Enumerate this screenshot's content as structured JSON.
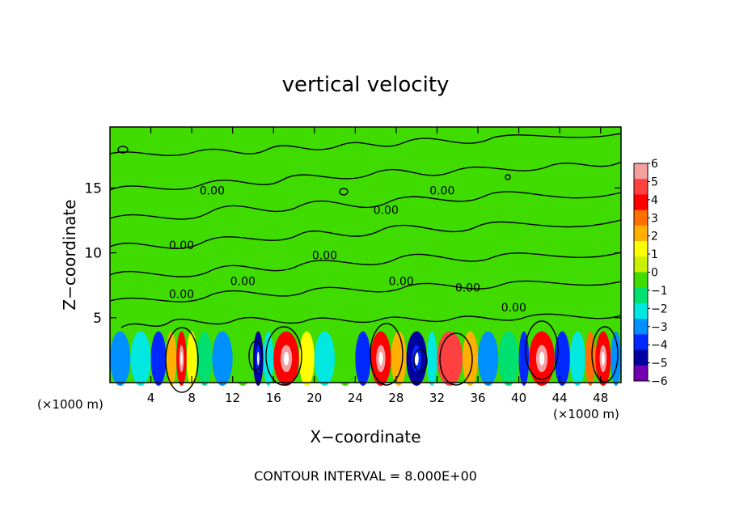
{
  "chart_data": {
    "type": "heatmap",
    "title": "vertical velocity",
    "xlabel": "X−coordinate",
    "ylabel": "Z−coordinate",
    "x_unit_left": "(×1000 m)",
    "x_unit_right": "(×1000 m)",
    "x_ticks": [
      "4",
      "8",
      "12",
      "16",
      "20",
      "24",
      "28",
      "32",
      "36",
      "40",
      "44",
      "48"
    ],
    "x_tick_values": [
      4,
      8,
      12,
      16,
      20,
      24,
      28,
      32,
      36,
      40,
      44,
      48
    ],
    "y_ticks": [
      "5",
      "10",
      "15"
    ],
    "y_tick_values": [
      5,
      10,
      15
    ],
    "xlim": [
      0,
      50
    ],
    "ylim": [
      0,
      19.7
    ],
    "colorbar": {
      "labels": [
        "6",
        "5",
        "4",
        "3",
        "2",
        "1",
        "0",
        "−1",
        "−2",
        "−3",
        "−4",
        "−5",
        "−6"
      ],
      "values": [
        6,
        5,
        4,
        3,
        2,
        1,
        0,
        -1,
        -2,
        -3,
        -4,
        -5,
        -6
      ],
      "colors": [
        "#f4a0a0",
        "#ff4040",
        "#ff0000",
        "#ff7000",
        "#ffb000",
        "#ffff00",
        "#c8f000",
        "#40dc00",
        "#00e070",
        "#00e8e0",
        "#0090ff",
        "#0028ff",
        "#0000a0",
        "#7000b0"
      ]
    },
    "cells": [
      {
        "x0": 0,
        "x1": 2,
        "color": "#0090ff"
      },
      {
        "x0": 2,
        "x1": 4,
        "color": "#00e8e0"
      },
      {
        "x0": 4,
        "x1": 5.5,
        "color": "#0028ff"
      },
      {
        "x0": 5.5,
        "x1": 6.5,
        "color": "#ffb000"
      },
      {
        "x0": 6.5,
        "x1": 7.5,
        "color": "#ff0000"
      },
      {
        "x0": 7.5,
        "x1": 8.5,
        "color": "#ffff00"
      },
      {
        "x0": 8.5,
        "x1": 10,
        "color": "#00e070"
      },
      {
        "x0": 10,
        "x1": 12,
        "color": "#0090ff"
      },
      {
        "x0": 12,
        "x1": 14,
        "color": "#40dc00"
      },
      {
        "x0": 14,
        "x1": 15,
        "color": "#0000a0"
      },
      {
        "x0": 15,
        "x1": 16,
        "color": "#00e8e0"
      },
      {
        "x0": 16,
        "x1": 18.5,
        "color": "#ff0000"
      },
      {
        "x0": 18.5,
        "x1": 20,
        "color": "#ffff00"
      },
      {
        "x0": 20,
        "x1": 22,
        "color": "#00e8e0"
      },
      {
        "x0": 22,
        "x1": 24,
        "color": "#40dc00"
      },
      {
        "x0": 24,
        "x1": 25.5,
        "color": "#0028ff"
      },
      {
        "x0": 25.5,
        "x1": 27.5,
        "color": "#ff0000"
      },
      {
        "x0": 27.5,
        "x1": 29,
        "color": "#ffb000"
      },
      {
        "x0": 29,
        "x1": 31,
        "color": "#0000a0"
      },
      {
        "x0": 31,
        "x1": 32,
        "color": "#00e8e0"
      },
      {
        "x0": 32,
        "x1": 34.5,
        "color": "#ff4040"
      },
      {
        "x0": 34.5,
        "x1": 36,
        "color": "#ffb000"
      },
      {
        "x0": 36,
        "x1": 38,
        "color": "#0090ff"
      },
      {
        "x0": 38,
        "x1": 40,
        "color": "#00e070"
      },
      {
        "x0": 40,
        "x1": 41,
        "color": "#0028ff"
      },
      {
        "x0": 41,
        "x1": 43.5,
        "color": "#ff0000"
      },
      {
        "x0": 43.5,
        "x1": 45,
        "color": "#0028ff"
      },
      {
        "x0": 45,
        "x1": 46.5,
        "color": "#00e8e0"
      },
      {
        "x0": 46.5,
        "x1": 47.5,
        "color": "#ff7000"
      },
      {
        "x0": 47.5,
        "x1": 49,
        "color": "#ff0000"
      },
      {
        "x0": 49,
        "x1": 50,
        "color": "#0090ff"
      }
    ],
    "contour_labels": [
      {
        "text": "0.00",
        "x": 10,
        "y": 14.5
      },
      {
        "text": "0.00",
        "x": 7,
        "y": 10.3
      },
      {
        "text": "0.00",
        "x": 13,
        "y": 7.5
      },
      {
        "text": "0.00",
        "x": 7,
        "y": 6.5
      },
      {
        "text": "0.00",
        "x": 27,
        "y": 13
      },
      {
        "text": "0.00",
        "x": 21,
        "y": 9.5
      },
      {
        "text": "0.00",
        "x": 28.5,
        "y": 7.5
      },
      {
        "text": "0.00",
        "x": 32.5,
        "y": 14.5
      },
      {
        "text": "0.00",
        "x": 35,
        "y": 7
      },
      {
        "text": "0.00",
        "x": 39.5,
        "y": 5.5
      }
    ],
    "background_color": "#40dc00",
    "footer": "CONTOUR INTERVAL = 8.000E+00"
  }
}
